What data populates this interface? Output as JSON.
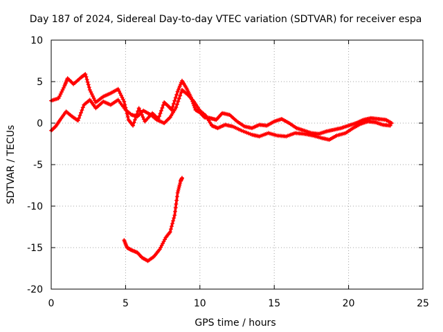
{
  "chart_data": {
    "type": "scatter",
    "title": "Day 187 of 2024, Sidereal Day-to-day VTEC variation (SDTVAR) for receiver espa",
    "xlabel": "GPS time / hours",
    "ylabel": "SDTVAR / TECUs",
    "xlim": [
      0,
      25
    ],
    "ylim": [
      -20,
      10
    ],
    "xticks": [
      0,
      5,
      10,
      15,
      20,
      25
    ],
    "yticks": [
      -20,
      -15,
      -10,
      -5,
      0,
      5,
      10
    ],
    "xtick_labels": [
      "0",
      "5",
      "10",
      "15",
      "20",
      "25"
    ],
    "ytick_labels": [
      "-20",
      "-15",
      "-10",
      "-5",
      "0",
      "5",
      "10"
    ],
    "grid": true,
    "marker": "plus",
    "color": "#ff0000",
    "series": [
      {
        "name": "upper-band-a",
        "points": [
          [
            0.0,
            2.7
          ],
          [
            0.5,
            3.0
          ],
          [
            0.9,
            4.5
          ],
          [
            1.1,
            5.4
          ],
          [
            1.5,
            4.7
          ],
          [
            2.0,
            5.5
          ],
          [
            2.3,
            5.9
          ],
          [
            2.6,
            4.0
          ],
          [
            3.0,
            2.5
          ],
          [
            3.5,
            3.2
          ],
          [
            4.0,
            3.6
          ],
          [
            4.5,
            4.1
          ],
          [
            4.9,
            2.6
          ],
          [
            5.2,
            0.4
          ],
          [
            5.5,
            -0.3
          ],
          [
            5.9,
            1.8
          ],
          [
            6.3,
            0.2
          ],
          [
            6.8,
            1.2
          ],
          [
            7.2,
            0.5
          ],
          [
            7.6,
            2.5
          ],
          [
            7.9,
            2.0
          ],
          [
            8.1,
            1.6
          ],
          [
            8.5,
            3.8
          ],
          [
            8.8,
            5.1
          ],
          [
            9.1,
            4.2
          ],
          [
            9.4,
            3.1
          ],
          [
            9.7,
            1.6
          ],
          [
            10.0,
            1.3
          ],
          [
            10.3,
            0.7
          ],
          [
            10.7,
            0.6
          ],
          [
            11.1,
            0.4
          ],
          [
            11.5,
            1.2
          ],
          [
            12.0,
            1.0
          ],
          [
            12.5,
            0.2
          ],
          [
            13.0,
            -0.4
          ],
          [
            13.5,
            -0.6
          ],
          [
            14.0,
            -0.2
          ],
          [
            14.5,
            -0.3
          ],
          [
            15.0,
            0.2
          ],
          [
            15.5,
            0.5
          ],
          [
            16.0,
            0.0
          ],
          [
            16.5,
            -0.6
          ],
          [
            17.0,
            -0.9
          ],
          [
            17.5,
            -1.2
          ],
          [
            18.0,
            -1.3
          ],
          [
            18.5,
            -1.0
          ],
          [
            19.0,
            -0.8
          ],
          [
            19.5,
            -0.6
          ],
          [
            20.0,
            -0.3
          ],
          [
            20.5,
            0.0
          ],
          [
            21.0,
            0.4
          ],
          [
            21.5,
            0.6
          ],
          [
            22.0,
            0.5
          ],
          [
            22.5,
            0.4
          ],
          [
            22.9,
            0.0
          ]
        ]
      },
      {
        "name": "upper-band-b",
        "points": [
          [
            0.0,
            -0.9
          ],
          [
            0.3,
            -0.4
          ],
          [
            0.6,
            0.4
          ],
          [
            1.0,
            1.4
          ],
          [
            1.4,
            0.8
          ],
          [
            1.8,
            0.3
          ],
          [
            2.2,
            2.2
          ],
          [
            2.6,
            2.8
          ],
          [
            3.0,
            1.8
          ],
          [
            3.5,
            2.6
          ],
          [
            4.0,
            2.2
          ],
          [
            4.5,
            2.8
          ],
          [
            5.0,
            1.6
          ],
          [
            5.4,
            1.0
          ],
          [
            5.8,
            0.8
          ],
          [
            6.2,
            1.5
          ],
          [
            6.7,
            1.0
          ],
          [
            7.1,
            0.4
          ],
          [
            7.6,
            0.0
          ],
          [
            8.0,
            0.7
          ],
          [
            8.4,
            1.9
          ],
          [
            8.8,
            4.0
          ],
          [
            9.2,
            3.4
          ],
          [
            9.6,
            2.6
          ],
          [
            10.0,
            1.5
          ],
          [
            10.4,
            0.9
          ],
          [
            10.8,
            -0.3
          ],
          [
            11.2,
            -0.6
          ],
          [
            11.7,
            -0.2
          ],
          [
            12.2,
            -0.4
          ],
          [
            12.8,
            -0.9
          ],
          [
            13.5,
            -1.4
          ],
          [
            14.0,
            -1.6
          ],
          [
            14.6,
            -1.2
          ],
          [
            15.2,
            -1.5
          ],
          [
            15.8,
            -1.6
          ],
          [
            16.4,
            -1.2
          ],
          [
            17.0,
            -1.3
          ],
          [
            17.6,
            -1.5
          ],
          [
            18.2,
            -1.8
          ],
          [
            18.7,
            -2.0
          ],
          [
            19.2,
            -1.5
          ],
          [
            19.8,
            -1.2
          ],
          [
            20.3,
            -0.6
          ],
          [
            20.8,
            -0.1
          ],
          [
            21.3,
            0.2
          ],
          [
            21.8,
            0.1
          ],
          [
            22.3,
            -0.2
          ],
          [
            22.8,
            -0.3
          ]
        ]
      },
      {
        "name": "lower-arc",
        "points": [
          [
            4.9,
            -14.1
          ],
          [
            5.1,
            -15.0
          ],
          [
            5.4,
            -15.3
          ],
          [
            5.8,
            -15.6
          ],
          [
            6.1,
            -16.2
          ],
          [
            6.5,
            -16.6
          ],
          [
            6.9,
            -16.1
          ],
          [
            7.3,
            -15.2
          ],
          [
            7.7,
            -13.8
          ],
          [
            8.0,
            -13.1
          ],
          [
            8.3,
            -11.1
          ],
          [
            8.5,
            -8.4
          ],
          [
            8.7,
            -7.0
          ],
          [
            8.8,
            -6.6
          ]
        ]
      }
    ]
  }
}
